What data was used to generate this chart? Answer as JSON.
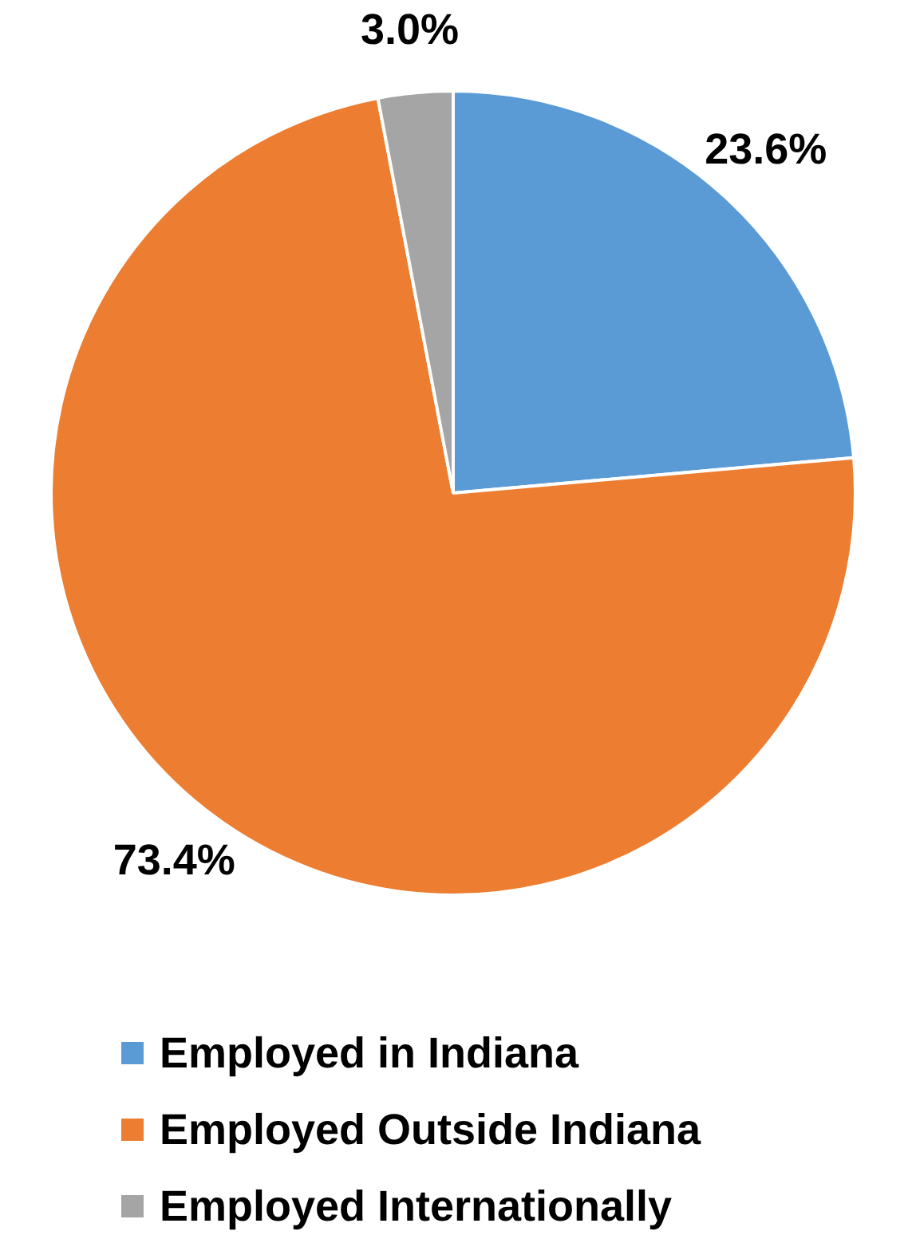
{
  "chart_data": {
    "type": "pie",
    "categories": [
      "Employed in Indiana",
      "Employed Outside Indiana",
      "Employed Internationally"
    ],
    "values": [
      23.6,
      73.4,
      3.0
    ],
    "colors": [
      "#5b9bd5",
      "#ed7d31",
      "#a5a5a5"
    ],
    "value_labels": [
      "23.6%",
      "73.4%",
      "3.0%"
    ],
    "legend": "bottom"
  }
}
